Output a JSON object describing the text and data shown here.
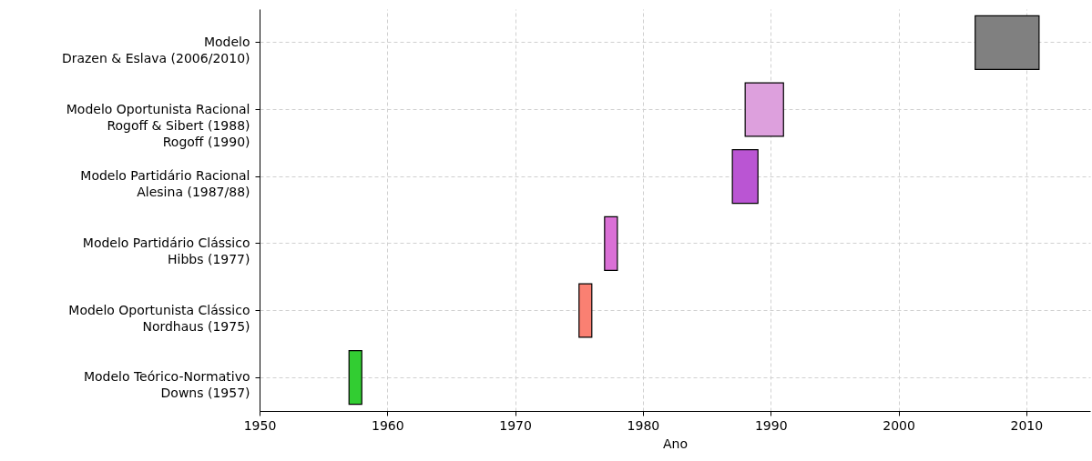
{
  "chart_data": {
    "type": "bar",
    "orientation": "horizontal",
    "xlabel": "Ano",
    "categories": [
      "Modelo\nDrazen & Eslava (2006/2010)",
      "Modelo Oportunista Racional\nRogoff & Sibert (1988)\nRogoff (1990)",
      "Modelo Partidário Racional\nAlesina (1987/88)",
      "Modelo Partidário Clássico\nHibbs (1977)",
      "Modelo Oportunista Clássico\nNordhaus (1975)",
      "Modelo Teórico-Normativo\nDowns (1957)"
    ],
    "base": [
      2006,
      1988,
      1987,
      1977,
      1975,
      1957
    ],
    "values": [
      5,
      3,
      2,
      1,
      1,
      1
    ],
    "colors": [
      "#808080",
      "#dda0dd",
      "#ba55d3",
      "#da70d6",
      "#fa8072",
      "#32cd32"
    ],
    "xlim": [
      1950,
      2015
    ],
    "xticks": [
      1950,
      1960,
      1970,
      1980,
      1990,
      2000,
      2010
    ],
    "grid": true
  }
}
